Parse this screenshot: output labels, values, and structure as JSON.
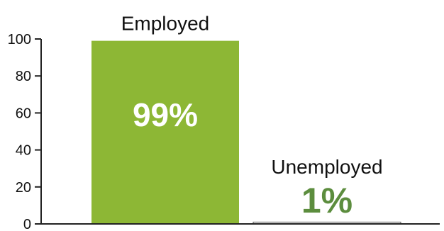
{
  "chart_data": {
    "type": "bar",
    "categories": [
      "Employed",
      "Unemployed"
    ],
    "values": [
      99,
      1
    ],
    "data_labels": [
      "99%",
      "1%"
    ],
    "ylim": [
      0,
      100
    ],
    "yticks": [
      0,
      20,
      40,
      60,
      80,
      100
    ],
    "grid": false,
    "legend": "none",
    "bar_colors": [
      "#8db735",
      "#ffffff"
    ],
    "data_label_colors": [
      "#ffffff",
      "#5c8d3e"
    ],
    "axis_color": "#222222"
  }
}
